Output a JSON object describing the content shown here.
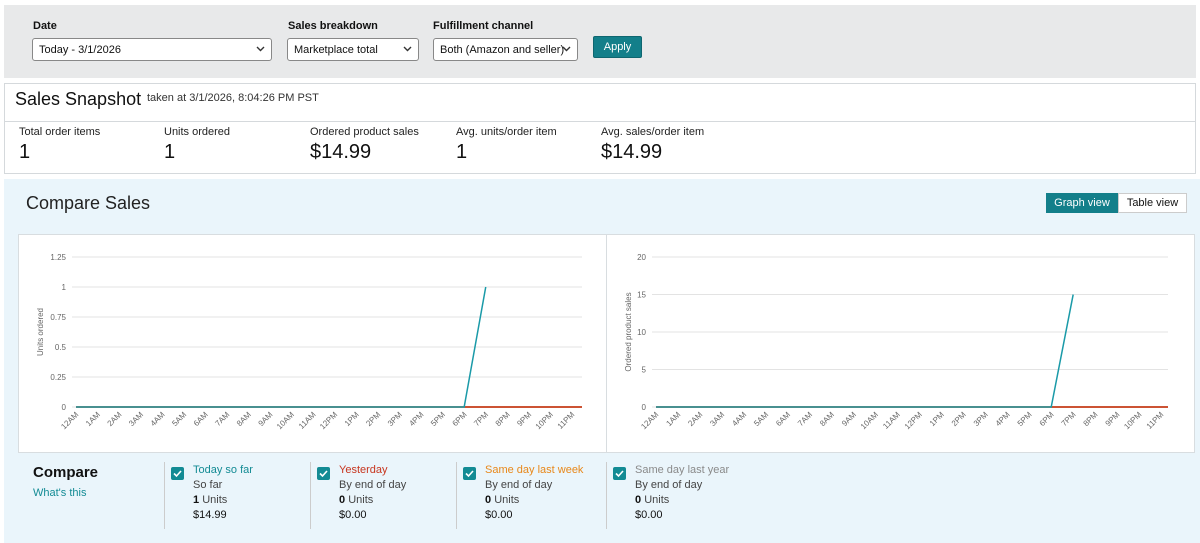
{
  "filters": {
    "date": {
      "label": "Date",
      "value": "Today - 3/1/2026"
    },
    "sales_breakdown": {
      "label": "Sales breakdown",
      "value": "Marketplace total"
    },
    "fulfillment_channel": {
      "label": "Fulfillment channel",
      "value": "Both (Amazon and seller)"
    },
    "apply": "Apply"
  },
  "snapshot": {
    "title": "Sales Snapshot",
    "taken_at": "taken at 3/1/2026, 8:04:26 PM PST",
    "metrics": [
      {
        "label": "Total order items",
        "value": 1
      },
      {
        "label": "Units ordered",
        "value": 1
      },
      {
        "label": "Ordered product sales",
        "value": "$14.99"
      },
      {
        "label": "Avg. units/order item",
        "value": 1
      },
      {
        "label": "Avg. sales/order item",
        "value": "$14.99"
      }
    ]
  },
  "compare_sales": {
    "title": "Compare Sales",
    "views": [
      "Graph view",
      "Table view"
    ]
  },
  "chart_data": [
    {
      "type": "line",
      "y_label": "Units ordered",
      "categories": [
        "12AM",
        "1AM",
        "2AM",
        "3AM",
        "4AM",
        "5AM",
        "6AM",
        "7AM",
        "8AM",
        "9AM",
        "10AM",
        "11AM",
        "12PM",
        "1PM",
        "2PM",
        "3PM",
        "4PM",
        "5PM",
        "6PM",
        "7PM",
        "8PM",
        "9PM",
        "10PM",
        "11PM"
      ],
      "series": [
        {
          "color": "#9e9e9e",
          "values": [
            0,
            0,
            0,
            0,
            0,
            0,
            0,
            0,
            0,
            0,
            0,
            0,
            0,
            0,
            0,
            0,
            0,
            0,
            0,
            0,
            0,
            0,
            0,
            0
          ]
        },
        {
          "color": "#e8881a",
          "values": [
            0,
            0,
            0,
            0,
            0,
            0,
            0,
            0,
            0,
            0,
            0,
            0,
            0,
            0,
            0,
            0,
            0,
            0,
            0,
            0,
            0,
            0,
            0,
            0
          ]
        },
        {
          "color": "#c7361f",
          "values": [
            0,
            0,
            0,
            0,
            0,
            0,
            0,
            0,
            0,
            0,
            0,
            0,
            0,
            0,
            0,
            0,
            0,
            0,
            0,
            0,
            0,
            0,
            0,
            0
          ]
        },
        {
          "color": "#1a9aa8",
          "values": [
            0,
            0,
            0,
            0,
            0,
            0,
            0,
            0,
            0,
            0,
            0,
            0,
            0,
            0,
            0,
            0,
            0,
            0,
            0,
            1,
            null,
            null,
            null,
            null
          ]
        }
      ],
      "ylim": [
        0,
        1.25
      ],
      "yticks": [
        0,
        0.25,
        0.5,
        0.75,
        1,
        1.25
      ],
      "grid": true
    },
    {
      "type": "line",
      "y_label": "Ordered product sales",
      "categories": [
        "12AM",
        "1AM",
        "2AM",
        "3AM",
        "4AM",
        "5AM",
        "6AM",
        "7AM",
        "8AM",
        "9AM",
        "10AM",
        "11AM",
        "12PM",
        "1PM",
        "2PM",
        "3PM",
        "4PM",
        "5PM",
        "6PM",
        "7PM",
        "8PM",
        "9PM",
        "10PM",
        "11PM"
      ],
      "series": [
        {
          "color": "#9e9e9e",
          "values": [
            0,
            0,
            0,
            0,
            0,
            0,
            0,
            0,
            0,
            0,
            0,
            0,
            0,
            0,
            0,
            0,
            0,
            0,
            0,
            0,
            0,
            0,
            0,
            0
          ]
        },
        {
          "color": "#e8881a",
          "values": [
            0,
            0,
            0,
            0,
            0,
            0,
            0,
            0,
            0,
            0,
            0,
            0,
            0,
            0,
            0,
            0,
            0,
            0,
            0,
            0,
            0,
            0,
            0,
            0
          ]
        },
        {
          "color": "#c7361f",
          "values": [
            0,
            0,
            0,
            0,
            0,
            0,
            0,
            0,
            0,
            0,
            0,
            0,
            0,
            0,
            0,
            0,
            0,
            0,
            0,
            0,
            0,
            0,
            0,
            0
          ]
        },
        {
          "color": "#1a9aa8",
          "values": [
            0,
            0,
            0,
            0,
            0,
            0,
            0,
            0,
            0,
            0,
            0,
            0,
            0,
            0,
            0,
            0,
            0,
            0,
            0,
            14.99,
            null,
            null,
            null,
            null
          ]
        }
      ],
      "ylim": [
        0,
        20
      ],
      "yticks": [
        0,
        5,
        10,
        15,
        20
      ],
      "grid": true
    }
  ],
  "compare": {
    "title": "Compare",
    "link": "What's this",
    "items": [
      {
        "name": "Today so far",
        "color": "#138b94",
        "checked": true,
        "period": "So far",
        "units": 1,
        "units_label": "Units",
        "sales": "$14.99"
      },
      {
        "name": "Yesterday",
        "color": "#c7361f",
        "checked": true,
        "period": "By end of day",
        "units": 0,
        "units_label": "Units",
        "sales": "$0.00"
      },
      {
        "name": "Same day last week",
        "color": "#e8881a",
        "checked": true,
        "period": "By end of day",
        "units": 0,
        "units_label": "Units",
        "sales": "$0.00"
      },
      {
        "name": "Same day last year",
        "color": "#8a8a8a",
        "checked": true,
        "period": "By end of day",
        "units": 0,
        "units_label": "Units",
        "sales": "$0.00"
      }
    ]
  }
}
